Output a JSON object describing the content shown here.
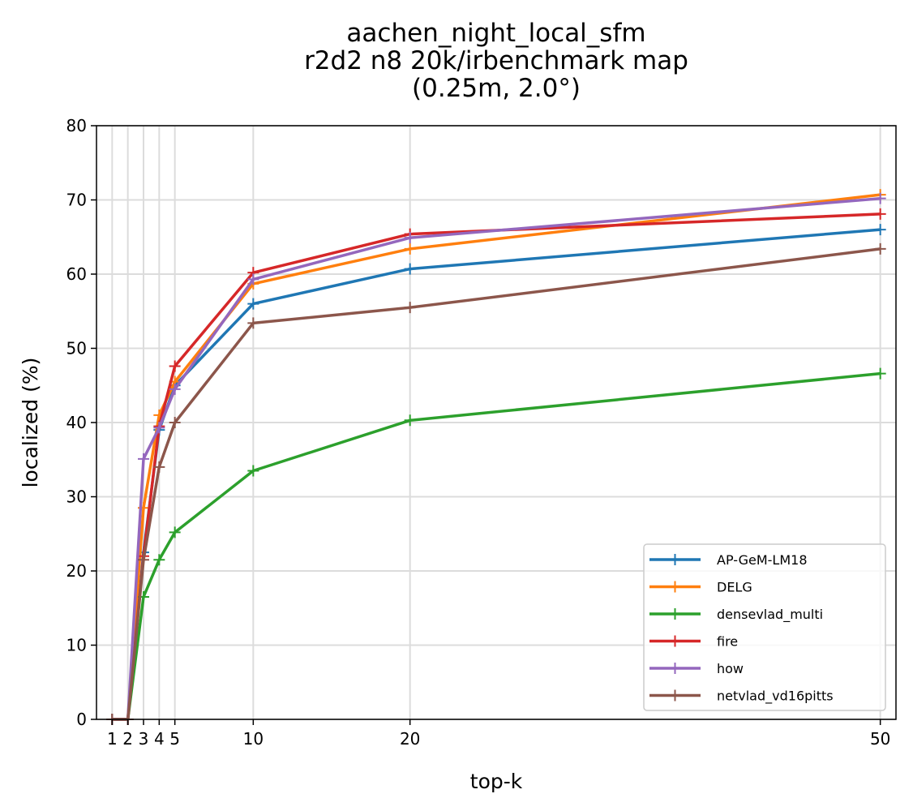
{
  "chart_data": {
    "type": "line",
    "title_lines": [
      "aachen_night_local_sfm",
      "r2d2 n8 20k/irbenchmark map",
      "(0.25m, 2.0°)"
    ],
    "xlabel": "top-k",
    "ylabel": "localized (%)",
    "xlim": [
      0,
      51
    ],
    "ylim": [
      0,
      80
    ],
    "xticks": [
      1,
      2,
      3,
      4,
      5,
      10,
      20,
      50
    ],
    "yticks": [
      0,
      10,
      20,
      30,
      40,
      50,
      60,
      70,
      80
    ],
    "grid": true,
    "legend_position": "lower-right",
    "x": [
      1,
      2,
      3,
      4,
      5,
      10,
      20,
      50
    ],
    "series": [
      {
        "name": "AP-GeM-LM18",
        "color": "#1f77b4",
        "values": [
          0,
          0,
          22.5,
          39.0,
          45.0,
          56.0,
          60.7,
          66.0
        ]
      },
      {
        "name": "DELG",
        "color": "#ff7f0e",
        "values": [
          0,
          0,
          28.5,
          41.0,
          45.5,
          58.7,
          63.4,
          70.7
        ]
      },
      {
        "name": "densevlad_multi",
        "color": "#2ca02c",
        "values": [
          0,
          0,
          16.5,
          21.5,
          25.2,
          33.5,
          40.3,
          46.6
        ]
      },
      {
        "name": "fire",
        "color": "#d62728",
        "values": [
          0,
          0,
          22.0,
          39.5,
          47.6,
          60.2,
          65.4,
          68.1
        ]
      },
      {
        "name": "how",
        "color": "#9467bd",
        "values": [
          0,
          0,
          35.1,
          39.3,
          44.5,
          59.3,
          64.9,
          70.2
        ]
      },
      {
        "name": "netvlad_vd16pitts",
        "color": "#8c564b",
        "values": [
          0,
          0,
          21.5,
          34.0,
          40.0,
          53.4,
          55.5,
          63.4
        ]
      }
    ]
  }
}
